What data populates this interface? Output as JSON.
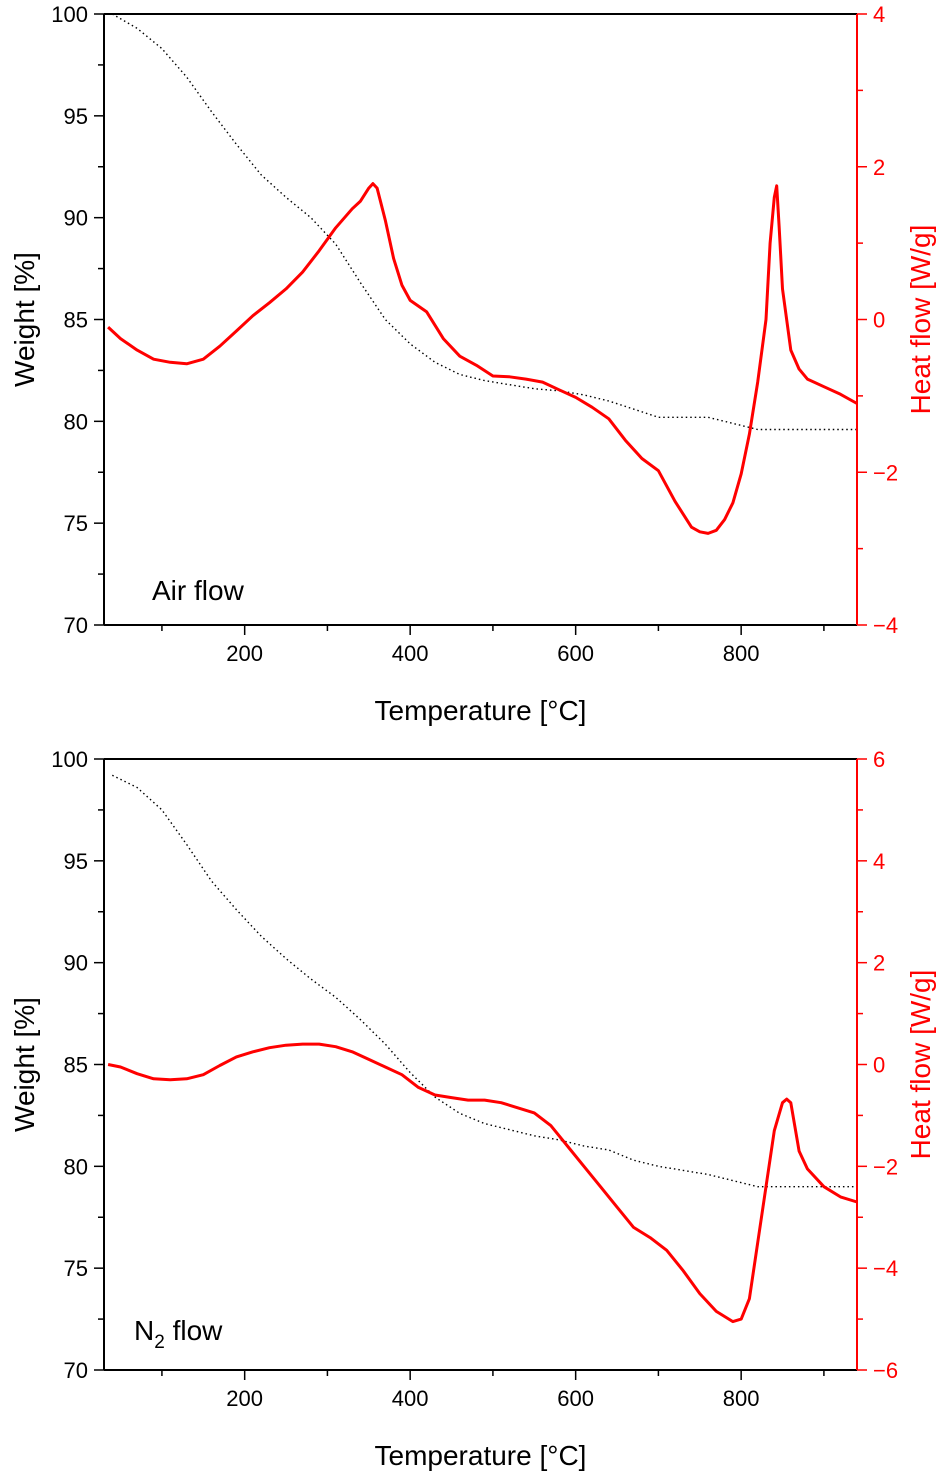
{
  "chart_data": [
    {
      "type": "line",
      "title": "",
      "xlabel": "Temperature [°C]",
      "ylabel": "Weight [%]",
      "y2label": "Heat flow [W/g]",
      "annotation": "Air flow",
      "xlim": [
        30,
        940
      ],
      "ylim": [
        70,
        100
      ],
      "y2lim": [
        -4,
        4
      ],
      "x_ticks": [
        200,
        400,
        600,
        800
      ],
      "y_ticks": [
        70,
        75,
        80,
        85,
        90,
        95,
        100
      ],
      "y2_ticks": [
        -4,
        -2,
        0,
        2,
        4
      ],
      "grid": false,
      "colors": {
        "weight": "#000000",
        "heat_flow": "#ff0000"
      },
      "series": [
        {
          "axis": "left",
          "style": "dotted",
          "x": [
            40,
            70,
            100,
            130,
            160,
            190,
            220,
            250,
            280,
            310,
            340,
            370,
            400,
            430,
            460,
            490,
            520,
            550,
            580,
            610,
            640,
            670,
            700,
            730,
            760,
            790,
            820,
            850,
            880,
            910,
            940
          ],
          "values": [
            100,
            99.3,
            98.3,
            96.9,
            95.2,
            93.6,
            92.1,
            91.0,
            90.0,
            88.7,
            86.8,
            85.0,
            83.8,
            82.9,
            82.3,
            82.0,
            81.8,
            81.6,
            81.5,
            81.3,
            81.0,
            80.6,
            80.2,
            80.2,
            80.2,
            79.9,
            79.6,
            79.6,
            79.6,
            79.6,
            79.6
          ]
        },
        {
          "axis": "right",
          "style": "solid",
          "x": [
            35,
            50,
            70,
            90,
            110,
            130,
            150,
            170,
            190,
            210,
            230,
            250,
            270,
            290,
            310,
            330,
            340,
            350,
            355,
            360,
            370,
            380,
            390,
            400,
            420,
            440,
            460,
            480,
            500,
            520,
            540,
            560,
            580,
            600,
            620,
            640,
            660,
            680,
            700,
            720,
            740,
            750,
            760,
            770,
            780,
            790,
            800,
            810,
            820,
            830,
            835,
            840,
            843,
            846,
            850,
            860,
            870,
            880,
            900,
            920,
            940
          ],
          "values": [
            -0.1,
            -0.25,
            -0.4,
            -0.52,
            -0.56,
            -0.58,
            -0.52,
            -0.35,
            -0.15,
            0.05,
            0.22,
            0.4,
            0.62,
            0.9,
            1.2,
            1.45,
            1.55,
            1.72,
            1.78,
            1.72,
            1.3,
            0.8,
            0.45,
            0.25,
            0.1,
            -0.25,
            -0.48,
            -0.6,
            -0.74,
            -0.75,
            -0.78,
            -0.82,
            -0.92,
            -1.02,
            -1.15,
            -1.3,
            -1.58,
            -1.82,
            -1.98,
            -2.38,
            -2.72,
            -2.78,
            -2.8,
            -2.76,
            -2.62,
            -2.4,
            -2.02,
            -1.5,
            -0.82,
            0.0,
            1.0,
            1.6,
            1.75,
            1.2,
            0.4,
            -0.4,
            -0.65,
            -0.78,
            -0.88,
            -0.98,
            -1.1
          ]
        }
      ]
    },
    {
      "type": "line",
      "title": "",
      "xlabel": "Temperature [°C]",
      "ylabel": "Weight [%]",
      "y2label": "Heat flow [W/g]",
      "annotation": "N",
      "annotation_subscript": "2",
      "annotation_suffix": " flow",
      "xlim": [
        30,
        940
      ],
      "ylim": [
        70,
        100
      ],
      "y2lim": [
        -6,
        6
      ],
      "x_ticks": [
        200,
        400,
        600,
        800
      ],
      "y_ticks": [
        70,
        75,
        80,
        85,
        90,
        95,
        100
      ],
      "y2_ticks": [
        -6,
        -4,
        -2,
        0,
        2,
        4,
        6
      ],
      "grid": false,
      "colors": {
        "weight": "#000000",
        "heat_flow": "#ff0000"
      },
      "series": [
        {
          "axis": "left",
          "style": "dotted",
          "x": [
            40,
            70,
            100,
            130,
            160,
            190,
            220,
            250,
            280,
            310,
            340,
            370,
            400,
            430,
            460,
            490,
            520,
            550,
            580,
            610,
            640,
            670,
            700,
            730,
            760,
            790,
            820,
            850,
            880,
            910,
            940
          ],
          "values": [
            99.2,
            98.6,
            97.5,
            95.8,
            94.0,
            92.6,
            91.3,
            90.2,
            89.2,
            88.3,
            87.2,
            86.0,
            84.6,
            83.4,
            82.6,
            82.1,
            81.8,
            81.5,
            81.3,
            81.0,
            80.8,
            80.3,
            80.0,
            79.8,
            79.6,
            79.3,
            79.0,
            79.0,
            79.0,
            79.0,
            79.0
          ]
        },
        {
          "axis": "right",
          "style": "solid",
          "x": [
            35,
            50,
            70,
            90,
            110,
            130,
            150,
            170,
            190,
            210,
            230,
            250,
            270,
            290,
            310,
            330,
            350,
            370,
            390,
            410,
            430,
            450,
            470,
            490,
            510,
            530,
            550,
            570,
            590,
            610,
            630,
            650,
            670,
            690,
            710,
            730,
            750,
            770,
            790,
            800,
            810,
            820,
            830,
            840,
            850,
            855,
            860,
            870,
            880,
            900,
            920,
            940
          ],
          "values": [
            0.0,
            -0.05,
            -0.18,
            -0.28,
            -0.3,
            -0.28,
            -0.2,
            -0.02,
            0.15,
            0.25,
            0.33,
            0.38,
            0.4,
            0.4,
            0.35,
            0.25,
            0.1,
            -0.05,
            -0.2,
            -0.45,
            -0.6,
            -0.65,
            -0.7,
            -0.7,
            -0.75,
            -0.85,
            -0.95,
            -1.2,
            -1.6,
            -2.0,
            -2.4,
            -2.8,
            -3.2,
            -3.4,
            -3.65,
            -4.05,
            -4.5,
            -4.85,
            -5.05,
            -5.0,
            -4.6,
            -3.5,
            -2.4,
            -1.3,
            -0.75,
            -0.68,
            -0.75,
            -1.7,
            -2.05,
            -2.4,
            -2.6,
            -2.7
          ]
        }
      ]
    }
  ]
}
